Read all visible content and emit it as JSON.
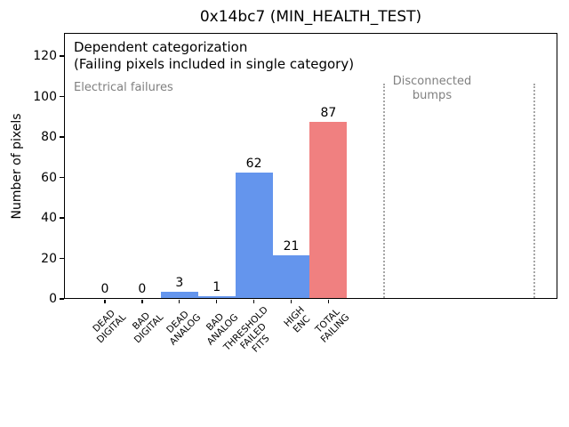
{
  "chart_data": {
    "type": "bar",
    "title": "0x14bc7 (MIN_HEALTH_TEST)",
    "ylabel": "Number of pixels",
    "xlabel": "",
    "categories": [
      "DEAD\nDIGITAL",
      "BAD\nDIGITAL",
      "DEAD\nANALOG",
      "BAD\nANALOG",
      "THRESHOLD\nFAILED\nFITS",
      "HIGH\nENC",
      "TOTAL\nFAILING"
    ],
    "values": [
      0,
      0,
      3,
      1,
      62,
      21,
      87
    ],
    "bar_colors": [
      "#6495ED",
      "#6495ED",
      "#6495ED",
      "#6495ED",
      "#6495ED",
      "#6495ED",
      "#F08080"
    ],
    "yticks": [
      0,
      20,
      40,
      60,
      80,
      100,
      120
    ],
    "ylim": [
      0,
      131.5
    ],
    "grid": false,
    "legend": null,
    "bar_width_fraction": 1.0,
    "annotations": {
      "dependent_line1": "Dependent categorization",
      "dependent_line2": "(Failing pixels included in single category)",
      "electrical_failures": "Electrical failures",
      "disconnected_bumps": "Disconnected\nbumps"
    },
    "reference_lines": {
      "style": "dotted",
      "color": "#a6a6a6",
      "region_label": "Disconnected bumps"
    },
    "colors": {
      "bar_blue": "#6495ED",
      "bar_red": "#F08080",
      "annotation_gray": "#808080",
      "axis_black": "#000000"
    }
  }
}
